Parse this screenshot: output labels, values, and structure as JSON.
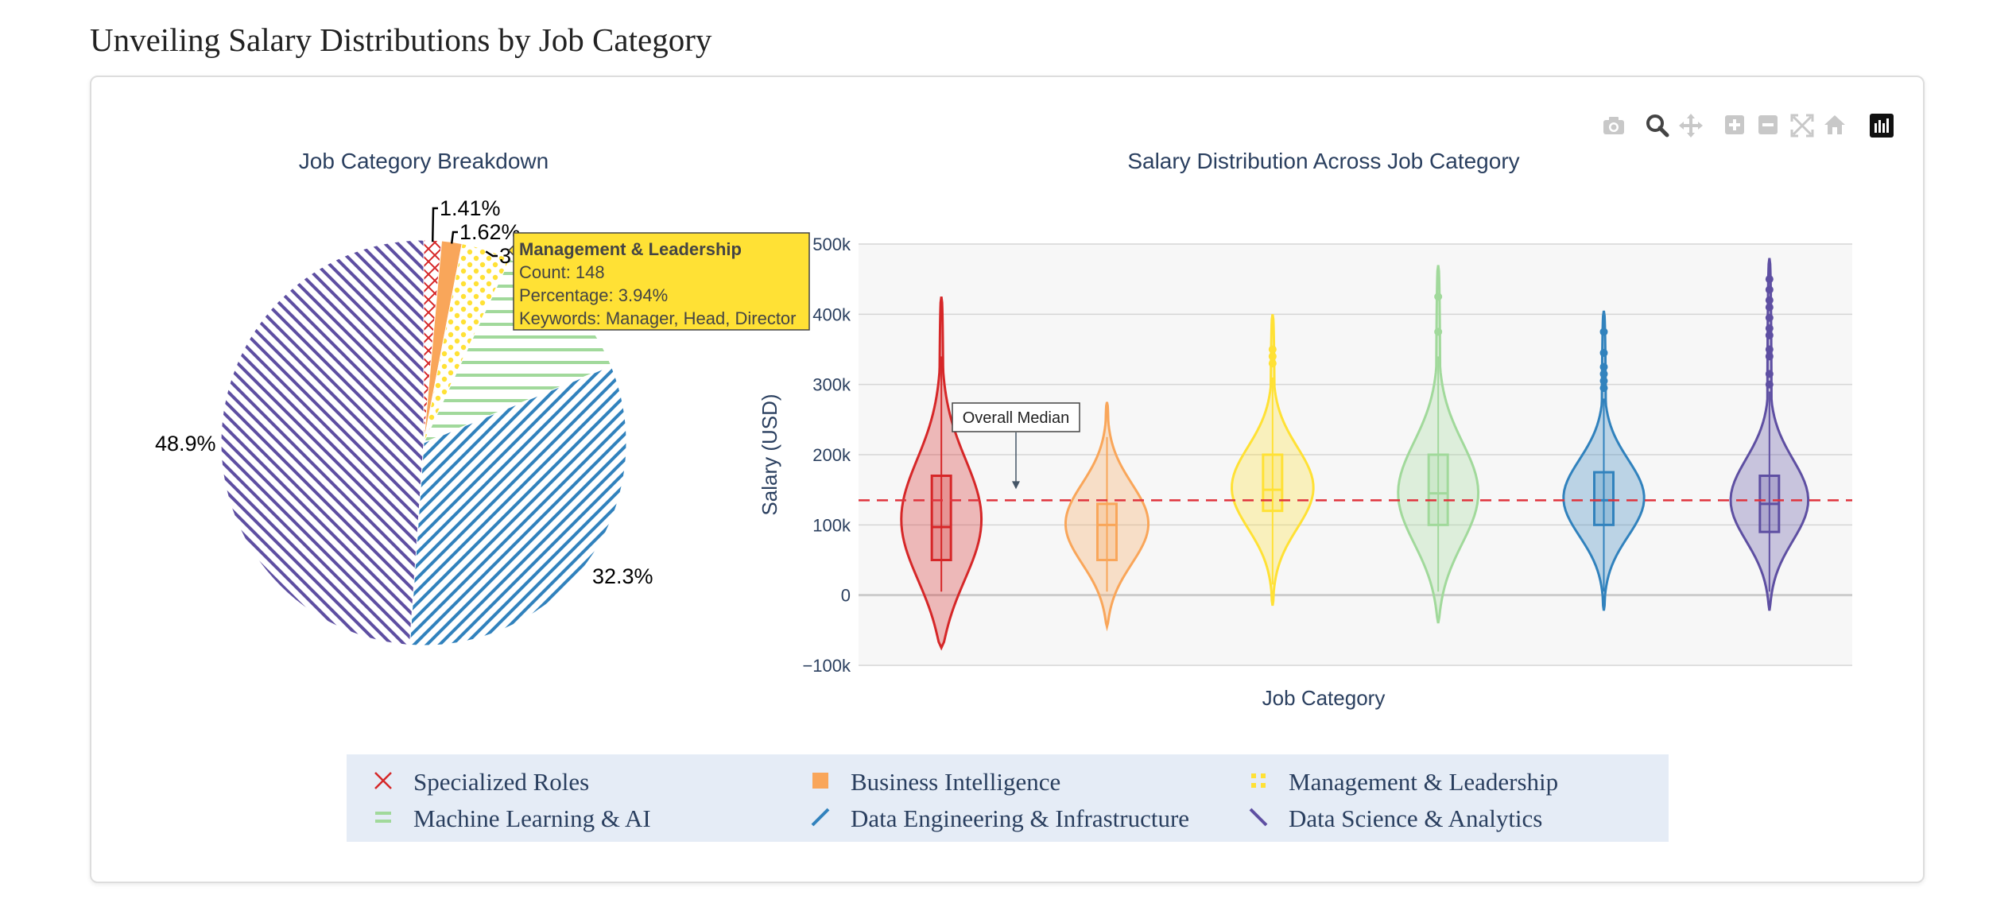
{
  "page": {
    "title": "Unveiling Salary Distributions by Job Category"
  },
  "toolbar": {
    "buttons": [
      "camera-icon",
      "zoom-icon",
      "pan-icon",
      "zoom-in-icon",
      "zoom-out-icon",
      "autoscale-icon",
      "reset-axes-icon",
      "plotly-logo-icon"
    ]
  },
  "chart_data": [
    {
      "type": "pie",
      "title": "Job Category Breakdown",
      "slices": [
        {
          "name": "Specialized Roles",
          "value": 1.41,
          "label": "1.41%",
          "color": "#d62728",
          "pattern": "x"
        },
        {
          "name": "Business Intelligence",
          "value": 1.62,
          "label": "1.62%",
          "color": "#f9a65a",
          "pattern": "solid"
        },
        {
          "name": "Management & Leadership",
          "value": 3.94,
          "label": "3.",
          "color": "#ffe135",
          "pattern": "dots"
        },
        {
          "name": "Machine Learning & AI",
          "value": 11.83,
          "label": "",
          "color": "#a1d99b",
          "pattern": "horizontal"
        },
        {
          "name": "Data Engineering & Infrastructure",
          "value": 32.3,
          "label": "32.3%",
          "color": "#3182bd",
          "pattern": "forward"
        },
        {
          "name": "Data Science & Analytics",
          "value": 48.9,
          "label": "48.9%",
          "color": "#5e4fa2",
          "pattern": "backward"
        }
      ],
      "tooltip": {
        "title": "Management & Leadership",
        "lines": [
          "Count: 148",
          "Percentage: 3.94%",
          "Keywords: Manager, Head, Director"
        ]
      }
    },
    {
      "type": "violin",
      "title": "Salary Distribution Across Job Category",
      "xlabel": "Job Category",
      "ylabel": "Salary (USD)",
      "ylim": [
        -100000,
        500000
      ],
      "yticks": [
        -100000,
        0,
        100000,
        200000,
        300000,
        400000,
        500000
      ],
      "ytick_labels": [
        "−100k",
        "0",
        "100k",
        "200k",
        "300k",
        "400k",
        "500k"
      ],
      "overall_median": 135000,
      "annotation": "Overall Median",
      "series": [
        {
          "name": "Specialized Roles",
          "color": "#d62728",
          "min": -75000,
          "max": 425000,
          "q1": 50000,
          "median": 97000,
          "q3": 170000,
          "whisker_low": 5000,
          "whisker_high": 340000,
          "peak": 100000,
          "outliers": []
        },
        {
          "name": "Business Intelligence",
          "color": "#f9a65a",
          "min": -45000,
          "max": 275000,
          "q1": 50000,
          "median": 100000,
          "q3": 130000,
          "whisker_low": 5000,
          "whisker_high": 225000,
          "peak": 100000,
          "outliers": []
        },
        {
          "name": "Management & Leadership",
          "color": "#ffe135",
          "min": -15000,
          "max": 400000,
          "q1": 120000,
          "median": 150000,
          "q3": 200000,
          "whisker_low": 15000,
          "whisker_high": 310000,
          "peak": 150000,
          "outliers": [
            330000,
            340000,
            350000
          ]
        },
        {
          "name": "Machine Learning & AI",
          "color": "#a1d99b",
          "min": -40000,
          "max": 470000,
          "q1": 100000,
          "median": 145000,
          "q3": 200000,
          "whisker_low": 5000,
          "whisker_high": 340000,
          "peak": 140000,
          "outliers": [
            375000,
            425000
          ]
        },
        {
          "name": "Data Engineering & Infrastructure",
          "color": "#3182bd",
          "min": -22000,
          "max": 405000,
          "q1": 100000,
          "median": 135000,
          "q3": 175000,
          "whisker_low": 5000,
          "whisker_high": 280000,
          "peak": 135000,
          "outliers": [
            295000,
            305000,
            315000,
            325000,
            345000,
            375000
          ]
        },
        {
          "name": "Data Science & Analytics",
          "color": "#5e4fa2",
          "min": -22000,
          "max": 480000,
          "q1": 90000,
          "median": 130000,
          "q3": 170000,
          "whisker_low": 5000,
          "whisker_high": 290000,
          "peak": 130000,
          "outliers": [
            300000,
            315000,
            340000,
            350000,
            370000,
            380000,
            395000,
            410000,
            420000,
            435000,
            450000
          ]
        }
      ]
    }
  ],
  "legend": {
    "items": [
      {
        "name": "Specialized Roles",
        "color": "#d62728",
        "pattern": "x"
      },
      {
        "name": "Business Intelligence",
        "color": "#f9a65a",
        "pattern": "solid"
      },
      {
        "name": "Management & Leadership",
        "color": "#ffe135",
        "pattern": "dots"
      },
      {
        "name": "Machine Learning & AI",
        "color": "#a1d99b",
        "pattern": "horizontal"
      },
      {
        "name": "Data Engineering & Infrastructure",
        "color": "#3182bd",
        "pattern": "forward"
      },
      {
        "name": "Data Science & Analytics",
        "color": "#5e4fa2",
        "pattern": "backward"
      }
    ]
  }
}
